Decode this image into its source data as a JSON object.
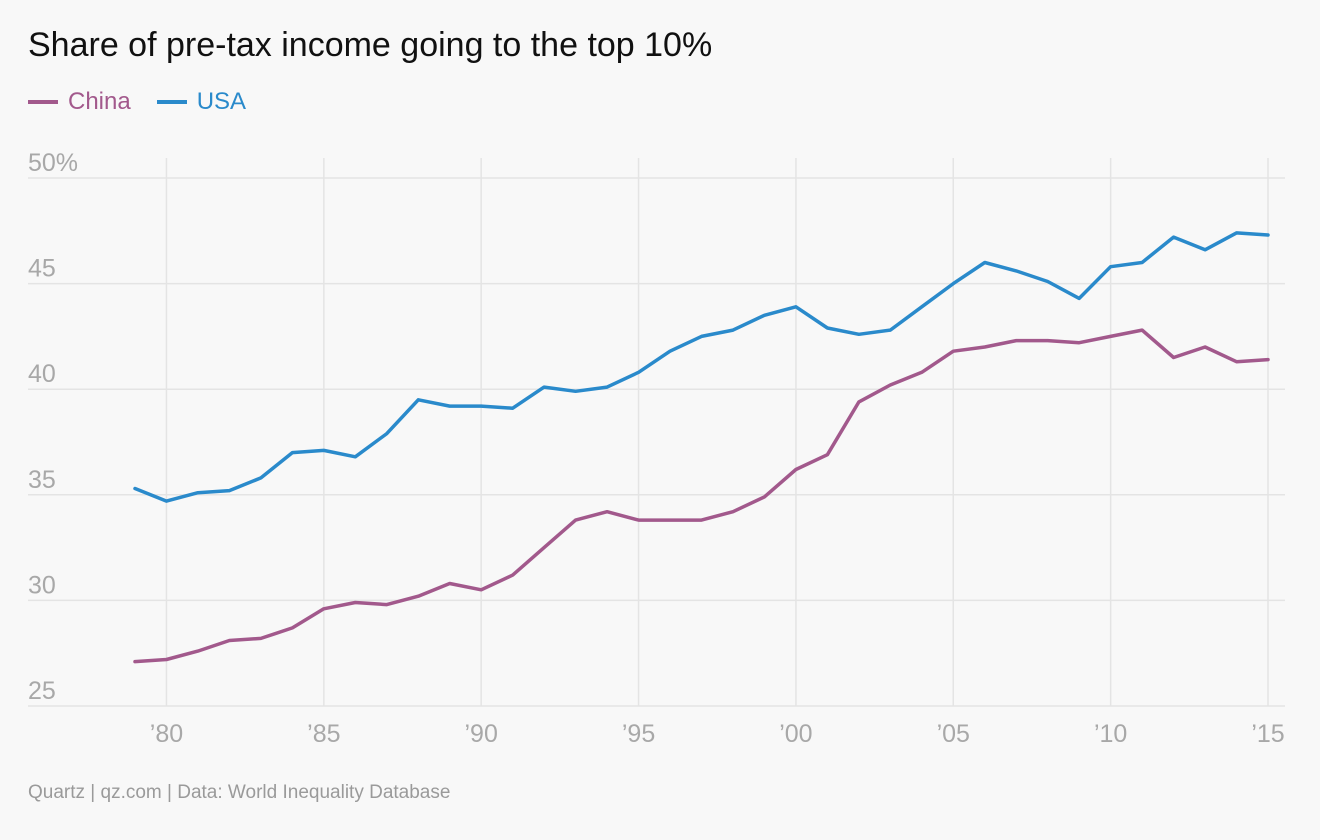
{
  "title": "Share of pre-tax income going to the top 10%",
  "source": "Quartz | qz.com | Data: World Inequality Database",
  "colors": {
    "china": "#a2598c",
    "usa": "#2a8acb",
    "grid": "#e4e4e4",
    "tick": "#a8a8a8"
  },
  "chart_data": {
    "type": "line",
    "title": "Share of pre-tax income going to the top 10%",
    "xlabel": "",
    "ylabel": "",
    "xlim": [
      1979,
      2015
    ],
    "ylim": [
      25,
      50
    ],
    "grid": true,
    "legend_placement": "top-left",
    "x_ticks": [
      1980,
      1985,
      1990,
      1995,
      2000,
      2005,
      2010,
      2015
    ],
    "x_tick_labels": [
      "’80",
      "’85",
      "’90",
      "’95",
      "’00",
      "’05",
      "’10",
      "’15"
    ],
    "y_ticks": [
      25,
      30,
      35,
      40,
      45,
      50
    ],
    "y_tick_labels": [
      "25",
      "30",
      "35",
      "40",
      "45",
      "50%"
    ],
    "x": [
      1979,
      1980,
      1981,
      1982,
      1983,
      1984,
      1985,
      1986,
      1987,
      1988,
      1989,
      1990,
      1991,
      1992,
      1993,
      1994,
      1995,
      1996,
      1997,
      1998,
      1999,
      2000,
      2001,
      2002,
      2003,
      2004,
      2005,
      2006,
      2007,
      2008,
      2009,
      2010,
      2011,
      2012,
      2013,
      2014,
      2015
    ],
    "series": [
      {
        "name": "China",
        "values": [
          27.1,
          27.2,
          27.6,
          28.1,
          28.2,
          28.7,
          29.6,
          29.9,
          29.8,
          30.2,
          30.8,
          30.5,
          31.2,
          32.5,
          33.8,
          34.2,
          33.8,
          33.8,
          33.8,
          34.2,
          34.9,
          36.2,
          36.9,
          39.4,
          40.2,
          40.8,
          41.8,
          42.0,
          42.3,
          42.3,
          42.2,
          42.5,
          42.8,
          41.5,
          42.0,
          41.3,
          41.4
        ]
      },
      {
        "name": "USA",
        "values": [
          35.3,
          34.7,
          35.1,
          35.2,
          35.8,
          37.0,
          37.1,
          36.8,
          37.9,
          39.5,
          39.2,
          39.2,
          39.1,
          40.1,
          39.9,
          40.1,
          40.8,
          41.8,
          42.5,
          42.8,
          43.5,
          43.9,
          42.9,
          42.6,
          42.8,
          43.9,
          45.0,
          46.0,
          45.6,
          45.1,
          44.3,
          45.8,
          46.0,
          47.2,
          46.6,
          47.4,
          47.3
        ]
      }
    ]
  }
}
